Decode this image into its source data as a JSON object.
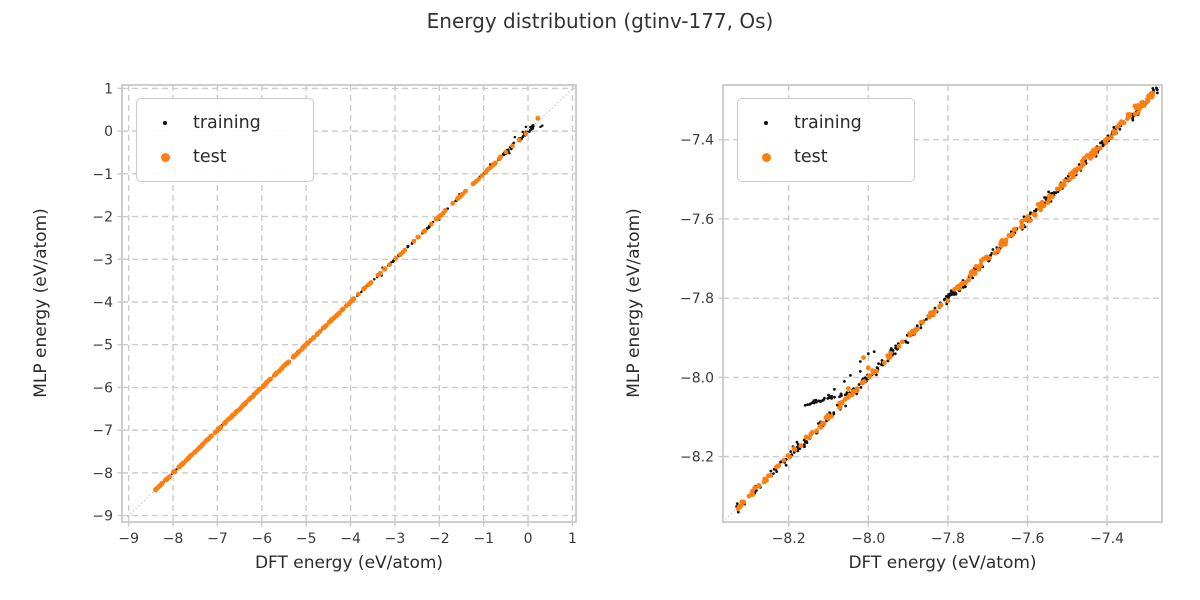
{
  "figure": {
    "title": "Energy distribution (gtinv-177, Os)"
  },
  "colors": {
    "background": "#ffffff",
    "title": "#333333",
    "axis_label": "#2b2b2b",
    "tick_label": "#3a3a3a",
    "grid": "#cccccc",
    "spine": "#c9c9c9",
    "identity": "#b3b3b3",
    "training": "#111111",
    "test": "#ff7f0e",
    "legend_border": "#cccccc"
  },
  "legend": {
    "position": "upper-left",
    "items": [
      {
        "label": "training",
        "marker": "small-black-dot"
      },
      {
        "label": "test",
        "marker": "orange-dot"
      }
    ]
  },
  "chart_data": [
    {
      "type": "scatter",
      "title": "",
      "xlabel": "DFT energy (eV/atom)",
      "ylabel": "MLP energy (eV/atom)",
      "xlim": [
        -9.15,
        1.08
      ],
      "ylim": [
        -9.15,
        1.08
      ],
      "grid": true,
      "identity_line": true,
      "legend_position": "upper left",
      "xticks": {
        "values": [
          -9,
          -8,
          -7,
          -6,
          -5,
          -4,
          -3,
          -2,
          -1,
          0,
          1
        ],
        "labels": [
          "−9",
          "−8",
          "−7",
          "−6",
          "−5",
          "−4",
          "−3",
          "−2",
          "−1",
          "0",
          "1"
        ]
      },
      "yticks": {
        "values": [
          -9,
          -8,
          -7,
          -6,
          -5,
          -4,
          -3,
          -2,
          -1,
          0,
          1
        ],
        "labels": [
          "−9",
          "−8",
          "−7",
          "−6",
          "−5",
          "−4",
          "−3",
          "−2",
          "−1",
          "0",
          "1"
        ]
      },
      "series": [
        {
          "name": "training",
          "color": "#111111",
          "marker_radius": 1.25,
          "bands": [
            {
              "x0": -8.37,
              "x1": -4.3,
              "count": 95,
              "jitter": 0.015,
              "seed": 11
            },
            {
              "x0": -4.3,
              "x1": -0.5,
              "count": 115,
              "jitter": 0.02,
              "seed": 12
            },
            {
              "x0": -0.55,
              "x1": 0.12,
              "count": 50,
              "jitter": 0.05,
              "seed": 13
            }
          ],
          "points": [
            [
              0.32,
              0.13
            ],
            [
              0.28,
              0.1
            ],
            [
              -0.05,
              0.1
            ],
            [
              -0.12,
              -0.02
            ],
            [
              -3.28,
              -3.2
            ],
            [
              -3.3,
              -3.38
            ],
            [
              -1.55,
              -1.48
            ],
            [
              -2.0,
              -2.07
            ],
            [
              -0.85,
              -0.78
            ],
            [
              -4.45,
              -4.4
            ],
            [
              -0.3,
              -0.14
            ],
            [
              -0.42,
              -0.52
            ],
            [
              -5.2,
              -5.16
            ],
            [
              -5.95,
              -6.0
            ],
            [
              -6.6,
              -6.57
            ]
          ]
        },
        {
          "name": "test",
          "color": "#ff7f0e",
          "marker_radius": 2.4,
          "bands": [
            {
              "x0": -8.4,
              "x1": -4.25,
              "count": 180,
              "jitter": 0.012,
              "seed": 21
            },
            {
              "x0": -4.2,
              "x1": -0.62,
              "count": 62,
              "jitter": 0.012,
              "seed": 22
            }
          ],
          "points": [
            [
              -0.5,
              -0.49
            ],
            [
              -0.35,
              -0.35
            ],
            [
              -0.2,
              -0.21
            ],
            [
              -0.05,
              -0.06
            ],
            [
              0.22,
              0.3
            ],
            [
              -0.62,
              -0.6
            ],
            [
              -0.75,
              -0.76
            ],
            [
              -0.9,
              -0.89
            ]
          ]
        }
      ]
    },
    {
      "type": "scatter",
      "title": "",
      "xlabel": "DFT energy (eV/atom)",
      "ylabel": "MLP energy (eV/atom)",
      "xlim": [
        -8.365,
        -7.262
      ],
      "ylim": [
        -8.365,
        -7.262
      ],
      "grid": true,
      "identity_line": true,
      "legend_position": "upper left",
      "xticks": {
        "values": [
          -8.2,
          -8.0,
          -7.8,
          -7.6,
          -7.4
        ],
        "labels": [
          "−8.2",
          "−8.0",
          "−7.8",
          "−7.6",
          "−7.4"
        ]
      },
      "yticks": {
        "values": [
          -8.2,
          -8.0,
          -7.8,
          -7.6,
          -7.4
        ],
        "labels": [
          "−8.2",
          "−8.0",
          "−7.8",
          "−7.6",
          "−7.4"
        ]
      },
      "series": [
        {
          "name": "training",
          "color": "#111111",
          "marker_radius": 1.4,
          "bands": [
            {
              "x0": -8.335,
              "x1": -7.27,
              "count": 270,
              "jitter": 0.009,
              "seed": 31
            },
            {
              "x0": -8.335,
              "x1": -7.27,
              "count": 130,
              "jitter": 0.016,
              "seed": 32
            },
            {
              "x0": -8.16,
              "x1": -8.04,
              "count": 28,
              "jitter": 0.004,
              "seed": 33,
              "line": {
                "y0": -8.068,
                "slope": 0.25
              }
            }
          ],
          "points": [
            [
              -8.085,
              -8.03
            ],
            [
              -8.06,
              -8.01
            ],
            [
              -8.045,
              -7.995
            ],
            [
              -8.02,
              -7.985
            ],
            [
              -8.1,
              -8.045
            ],
            [
              -8.12,
              -8.06
            ],
            [
              -8.02,
              -7.96
            ],
            [
              -8.0,
              -7.94
            ],
            [
              -7.985,
              -7.935
            ]
          ]
        },
        {
          "name": "test",
          "color": "#ff7f0e",
          "marker_radius": 2.4,
          "bands": [
            {
              "x0": -8.34,
              "x1": -7.275,
              "count": 155,
              "jitter": 0.007,
              "seed": 41
            },
            {
              "x0": -7.78,
              "x1": -7.285,
              "count": 65,
              "jitter": 0.011,
              "seed": 42
            }
          ],
          "points": [
            [
              -8.012,
              -7.95
            ],
            [
              -8.0,
              -7.976
            ],
            [
              -8.05,
              -8.028
            ],
            [
              -7.45,
              -7.44
            ],
            [
              -7.33,
              -7.315
            ]
          ]
        }
      ]
    }
  ]
}
